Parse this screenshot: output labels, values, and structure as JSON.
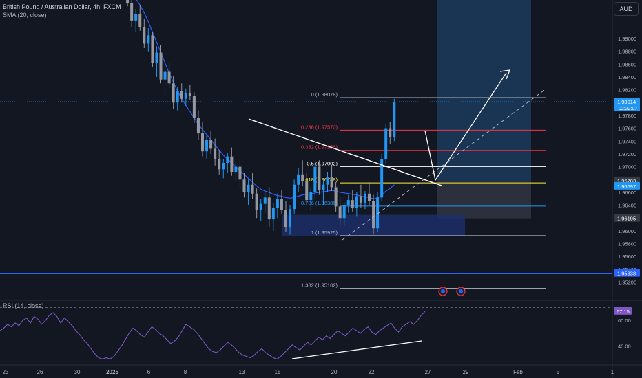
{
  "header": {
    "symbol_title": "British Pound / Australian Dollar, 4h, FXCM",
    "indicator_sma": "SMA (20, close)",
    "indicator_rsi": "RSI (14, close)",
    "currency_button": "AUD"
  },
  "colors": {
    "background": "#131722",
    "candle": "#2196f3",
    "candle_grey": "#9598a1",
    "sma": "#2962ff",
    "rsi": "#7e57c2",
    "support_line": "#2962ff",
    "fib_red": "#f23645",
    "fib_blue": "#2196f3"
  },
  "chart_data": {
    "type": "candlestick",
    "price_axis": {
      "ylim": [
        1.9512,
        1.996
      ],
      "ticks": [
        "1.99000",
        "1.98800",
        "1.98600",
        "1.98400",
        "1.98200",
        "1.97800",
        "1.97600",
        "1.97400",
        "1.97200",
        "1.97000",
        "1.96600",
        "1.96400",
        "1.96000",
        "1.95800",
        "1.95600",
        "1.95400",
        "1.95200"
      ],
      "labels": [
        {
          "text": "1.98014",
          "sub": "02:22:07",
          "value": 1.98014,
          "color": "#2196f3"
        },
        {
          "text": "1.96783",
          "value": 1.96783,
          "color": "#363a45"
        },
        {
          "text": "1.96697",
          "value": 1.96697,
          "color": "#2196f3"
        },
        {
          "text": "1.96195",
          "value": 1.96195,
          "color": "#363a45"
        },
        {
          "text": "1.95338",
          "value": 1.95338,
          "color": "#2962ff"
        }
      ]
    },
    "x_axis_labels": [
      "23",
      "26",
      "30",
      "2025",
      "6",
      "8",
      "13",
      "15",
      "20",
      "22",
      "27",
      "29",
      "Feb",
      "5",
      "1"
    ],
    "candles": [
      [
        1.9968,
        1.998,
        1.996,
        1.9972
      ],
      [
        1.9972,
        1.9982,
        1.9965,
        1.9966
      ],
      [
        1.9966,
        1.9974,
        1.995,
        1.9955
      ],
      [
        1.9955,
        1.9963,
        1.9918,
        1.9928
      ],
      [
        1.9928,
        1.9946,
        1.991,
        1.9938
      ],
      [
        1.9938,
        1.9952,
        1.9912,
        1.9918
      ],
      [
        1.9918,
        1.993,
        1.9885,
        1.9892
      ],
      [
        1.9892,
        1.9916,
        1.988,
        1.9905
      ],
      [
        1.9905,
        1.991,
        1.9856,
        1.9862
      ],
      [
        1.9862,
        1.9888,
        1.984,
        1.9878
      ],
      [
        1.9878,
        1.989,
        1.983,
        1.9836
      ],
      [
        1.9836,
        1.9856,
        1.9812,
        1.9848
      ],
      [
        1.9848,
        1.9862,
        1.9822,
        1.983
      ],
      [
        1.983,
        1.9842,
        1.979,
        1.98
      ],
      [
        1.98,
        1.9824,
        1.9788,
        1.9818
      ],
      [
        1.9818,
        1.983,
        1.98,
        1.9806
      ],
      [
        1.9806,
        1.9822,
        1.9795,
        1.9815
      ],
      [
        1.9815,
        1.9828,
        1.9804,
        1.981
      ],
      [
        1.981,
        1.9816,
        1.9768,
        1.9776
      ],
      [
        1.9776,
        1.9788,
        1.9742,
        1.9752
      ],
      [
        1.9752,
        1.977,
        1.9716,
        1.9724
      ],
      [
        1.9724,
        1.9748,
        1.9712,
        1.9742
      ],
      [
        1.9742,
        1.9756,
        1.972,
        1.9728
      ],
      [
        1.9728,
        1.9744,
        1.9702,
        1.9712
      ],
      [
        1.9712,
        1.9726,
        1.9688,
        1.9696
      ],
      [
        1.9696,
        1.9712,
        1.9682,
        1.9706
      ],
      [
        1.9706,
        1.9722,
        1.969,
        1.9716
      ],
      [
        1.9716,
        1.973,
        1.9686,
        1.9692
      ],
      [
        1.9692,
        1.9708,
        1.9676,
        1.97
      ],
      [
        1.97,
        1.9712,
        1.967,
        1.968
      ],
      [
        1.968,
        1.969,
        1.9652,
        1.966
      ],
      [
        1.966,
        1.968,
        1.964,
        1.9672
      ],
      [
        1.9672,
        1.969,
        1.965,
        1.9658
      ],
      [
        1.9658,
        1.9666,
        1.962,
        1.9632
      ],
      [
        1.9632,
        1.965,
        1.9616,
        1.9642
      ],
      [
        1.9642,
        1.966,
        1.9628,
        1.9652
      ],
      [
        1.9652,
        1.9668,
        1.9606,
        1.9618
      ],
      [
        1.9618,
        1.9644,
        1.96,
        1.9636
      ],
      [
        1.9636,
        1.9658,
        1.962,
        1.965
      ],
      [
        1.965,
        1.9664,
        1.9626,
        1.9632
      ],
      [
        1.9632,
        1.9646,
        1.9598,
        1.9606
      ],
      [
        1.9606,
        1.964,
        1.9594,
        1.9634
      ],
      [
        1.9634,
        1.968,
        1.9626,
        1.9672
      ],
      [
        1.9672,
        1.9698,
        1.966,
        1.9688
      ],
      [
        1.9688,
        1.971,
        1.967,
        1.9678
      ],
      [
        1.9678,
        1.969,
        1.964,
        1.9648
      ],
      [
        1.9648,
        1.9668,
        1.9632,
        1.966
      ],
      [
        1.966,
        1.9706,
        1.965,
        1.97
      ],
      [
        1.97,
        1.971,
        1.9656,
        1.9664
      ],
      [
        1.9664,
        1.968,
        1.964,
        1.9672
      ],
      [
        1.9672,
        1.9692,
        1.966,
        1.9684
      ],
      [
        1.9684,
        1.9702,
        1.9662,
        1.9668
      ],
      [
        1.9668,
        1.9676,
        1.963,
        1.9638
      ],
      [
        1.9638,
        1.9652,
        1.961,
        1.962
      ],
      [
        1.962,
        1.9644,
        1.9608,
        1.964
      ],
      [
        1.964,
        1.9656,
        1.9628,
        1.9648
      ],
      [
        1.9648,
        1.9664,
        1.963,
        1.9636
      ],
      [
        1.9636,
        1.966,
        1.9622,
        1.9654
      ],
      [
        1.9654,
        1.9672,
        1.9636,
        1.9644
      ],
      [
        1.9644,
        1.9662,
        1.9634,
        1.9658
      ],
      [
        1.9658,
        1.9676,
        1.964,
        1.9646
      ],
      [
        1.9646,
        1.9656,
        1.9594,
        1.9604
      ],
      [
        1.9604,
        1.966,
        1.9598,
        1.9652
      ],
      [
        1.9652,
        1.972,
        1.9646,
        1.9712
      ],
      [
        1.9712,
        1.9766,
        1.9704,
        1.976
      ],
      [
        1.976,
        1.977,
        1.9736,
        1.9746
      ],
      [
        1.9746,
        1.9806,
        1.974,
        1.9801
      ]
    ],
    "sma_20": [
      1.999,
      1.9984,
      1.9978,
      1.997,
      1.9962,
      1.9952,
      1.994,
      1.9926,
      1.991,
      1.9894,
      1.9878,
      1.9862,
      1.9846,
      1.9832,
      1.9818,
      1.9806,
      1.9796,
      1.9786,
      1.9776,
      1.9766,
      1.9758,
      1.975,
      1.9742,
      1.9734,
      1.9726,
      1.9718,
      1.9712,
      1.9706,
      1.97,
      1.9694,
      1.9688,
      1.9682,
      1.9676,
      1.967,
      1.9665,
      1.9662,
      1.966,
      1.9657,
      1.9655,
      1.9654,
      1.9652,
      1.9651,
      1.9652,
      1.9654,
      1.9656,
      1.9657,
      1.9657,
      1.9659,
      1.966,
      1.9661,
      1.9662,
      1.9663,
      1.9662,
      1.966,
      1.9659,
      1.9658,
      1.9657,
      1.9656,
      1.9654,
      1.9653,
      1.9652,
      1.965,
      1.9651,
      1.9656,
      1.9662,
      1.9666,
      1.9672
    ],
    "fib_levels": [
      {
        "label": "0 (1.98078)",
        "value": 1.98078,
        "color": "#b2b5be"
      },
      {
        "label": "0.236 (1.97570)",
        "value": 1.9757,
        "color": "#f23645"
      },
      {
        "label": "0.382 (1.97256)",
        "value": 1.97256,
        "color": "#f23645"
      },
      {
        "label": "0.5 (1.97002)",
        "value": 1.97002,
        "color": "#ffffff"
      },
      {
        "label": "0.618 (1.96748)",
        "value": 1.96748,
        "color": "#ffeb3b"
      },
      {
        "label": "0.786 (1.96386)",
        "value": 1.96386,
        "color": "#2196f3"
      },
      {
        "label": "1 (1.95925)",
        "value": 1.95925,
        "color": "#b2b5be"
      },
      {
        "label": "1.382 (1.95102)",
        "value": 1.95102,
        "color": "#b2b5be"
      }
    ],
    "long_position": {
      "target": 2.0,
      "entry": 1.96783,
      "stop": 1.96195
    },
    "demand_zone": {
      "top": 1.9625,
      "bottom": 1.9592
    },
    "support_line_value": 1.95338,
    "current_price": 1.98014,
    "rsi": {
      "ylim": [
        27,
        74
      ],
      "tick_labels": [
        {
          "text": "60.00",
          "value": 60
        },
        {
          "text": "40.00",
          "value": 40
        }
      ],
      "band": [
        30,
        70
      ],
      "current": {
        "text": "67.15",
        "value": 67.15
      },
      "values": [
        52,
        54,
        57,
        55,
        58,
        56,
        60,
        62,
        58,
        63,
        61,
        57,
        60,
        64,
        66,
        63,
        58,
        62,
        59,
        56,
        52,
        49,
        45,
        42,
        38,
        34,
        31,
        30,
        31,
        30,
        32,
        36,
        40,
        45,
        50,
        54,
        52,
        49,
        47,
        51,
        55,
        53,
        50,
        48,
        45,
        42,
        44,
        47,
        52,
        57,
        55,
        53,
        50,
        46,
        42,
        38,
        36,
        35,
        37,
        40,
        43,
        41,
        38,
        35,
        33,
        32,
        31,
        33,
        36,
        38,
        35,
        33,
        31,
        30,
        32,
        35,
        38,
        41,
        39,
        37,
        40,
        43,
        41,
        44,
        47,
        45,
        48,
        46,
        49,
        52,
        50,
        48,
        51,
        54,
        52,
        50,
        53,
        55,
        51,
        49,
        52,
        54,
        56,
        58,
        54,
        51,
        55,
        57,
        59,
        57,
        60,
        64,
        67
      ]
    }
  }
}
